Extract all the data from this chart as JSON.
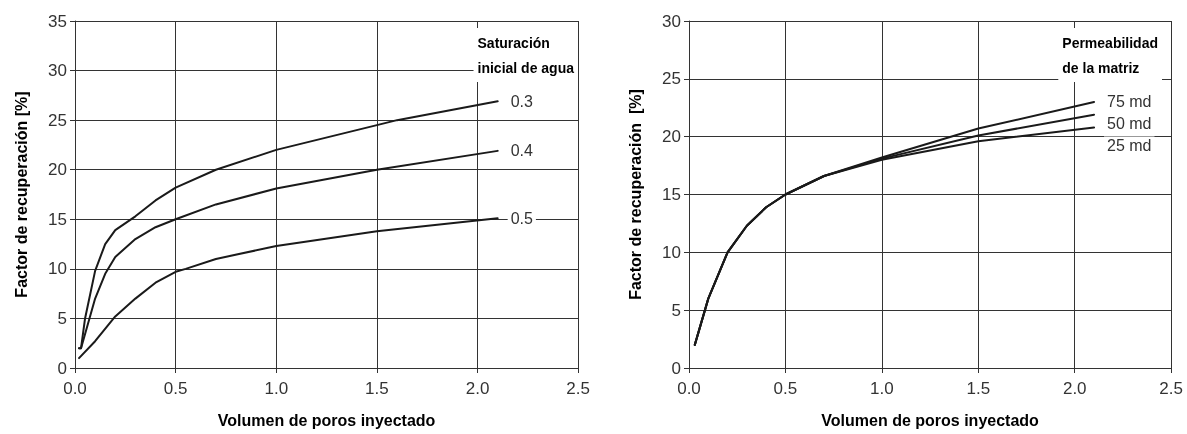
{
  "chart_data": [
    {
      "type": "line",
      "xlabel": "Volumen de poros inyectado",
      "ylabel": "Factor de recuperación [%]",
      "legend_title": "Saturación\ninicial de agua",
      "xlim": [
        0,
        2.5
      ],
      "xticks": [
        {
          "value": 0,
          "label": "0.0"
        },
        0.5,
        {
          "value": 1,
          "label": "1.0"
        },
        1.5,
        {
          "value": 2,
          "label": "2.0"
        },
        2.5
      ],
      "ylim": [
        0,
        35
      ],
      "yticks": [
        0,
        5,
        10,
        15,
        20,
        25,
        30,
        35
      ],
      "grid": true,
      "legend": false,
      "marker": "none",
      "line_style": "solid",
      "series": [
        {
          "name": "0.3",
          "color": "#1a1a1a",
          "x": [
            0.02,
            0.03,
            0.05,
            0.1,
            0.15,
            0.2,
            0.3,
            0.4,
            0.5,
            0.7,
            1.0,
            1.5,
            1.6,
            2.1
          ],
          "values": [
            2,
            2,
            5,
            9.8,
            12.5,
            13.9,
            15.3,
            16.9,
            18.2,
            20,
            22,
            24.5,
            25,
            26.9
          ]
        },
        {
          "name": "0.4",
          "color": "#1a1a1a",
          "x": [
            0.02,
            0.03,
            0.1,
            0.15,
            0.2,
            0.3,
            0.4,
            0.5,
            0.7,
            1.0,
            1.5,
            2.1
          ],
          "values": [
            2,
            2,
            7,
            9.5,
            11.2,
            13,
            14.2,
            15,
            16.5,
            18.1,
            20,
            21.9
          ]
        },
        {
          "name": "0.5",
          "color": "#1a1a1a",
          "x": [
            0.02,
            0.1,
            0.2,
            0.3,
            0.4,
            0.5,
            0.55,
            0.7,
            1.0,
            1.5,
            2.1
          ],
          "values": [
            1,
            2.7,
            5.2,
            7,
            8.6,
            9.7,
            10,
            11,
            12.3,
            13.8,
            15.1
          ]
        }
      ]
    },
    {
      "type": "line",
      "xlabel": "Volumen de poros inyectado",
      "ylabel": "Factor de recuperación  [%]",
      "legend_title": "Permeabilidad\nde la matriz",
      "xlim": [
        0,
        2.5
      ],
      "xticks": [
        {
          "value": 0,
          "label": "0.0"
        },
        0.5,
        {
          "value": 1,
          "label": "1.0"
        },
        1.5,
        {
          "value": 2,
          "label": "2.0"
        },
        2.5
      ],
      "ylim": [
        0,
        30
      ],
      "yticks": [
        0,
        5,
        10,
        15,
        20,
        25,
        30
      ],
      "grid": true,
      "legend": false,
      "marker": "none",
      "line_style": "solid",
      "series": [
        {
          "name": "75 md",
          "color": "#1a1a1a",
          "x": [
            0.03,
            0.1,
            0.2,
            0.3,
            0.4,
            0.5,
            0.7,
            1.0,
            1.5,
            2.1
          ],
          "values": [
            2,
            6,
            10,
            12.3,
            13.9,
            15,
            16.6,
            18.2,
            20.7,
            23
          ]
        },
        {
          "name": "50 md",
          "color": "#1a1a1a",
          "x": [
            0.03,
            0.1,
            0.2,
            0.3,
            0.4,
            0.5,
            0.7,
            1.0,
            1.5,
            2.1
          ],
          "values": [
            2,
            6,
            10,
            12.3,
            13.9,
            15,
            16.6,
            18.1,
            20.1,
            21.9
          ]
        },
        {
          "name": "25 md",
          "color": "#1a1a1a",
          "x": [
            0.03,
            0.1,
            0.2,
            0.3,
            0.4,
            0.5,
            0.7,
            1.0,
            1.5,
            2.1
          ],
          "values": [
            2,
            6,
            10,
            12.3,
            13.9,
            15,
            16.6,
            18,
            19.6,
            20.8
          ]
        }
      ]
    }
  ]
}
